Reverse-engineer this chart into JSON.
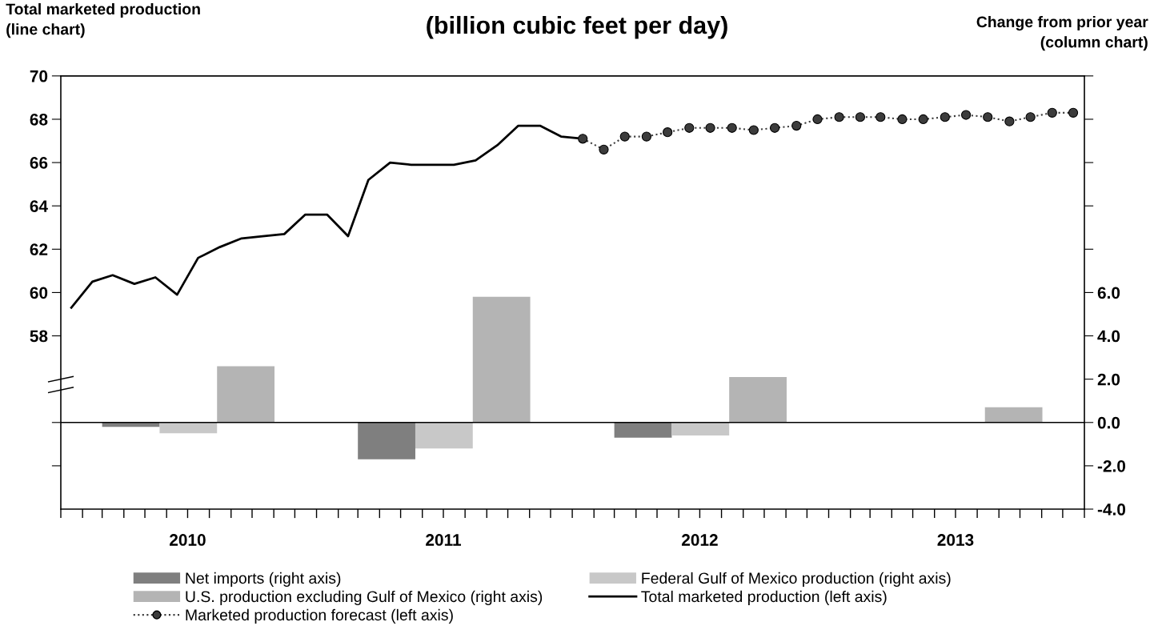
{
  "chart_data": {
    "type": "line",
    "title": "(billion cubic feet per day)",
    "ylabel": "Total marketed production\n(line chart)",
    "y2label": "Change from prior year\n(column chart)",
    "xlim": [
      "2010-01-01",
      "2014-01-01"
    ],
    "xticks": [
      {
        "value": "2010-01-01",
        "label": null
      },
      {
        "value": "2010-02-01",
        "label": null
      },
      {
        "value": "2010-03-01",
        "label": null
      },
      {
        "value": "2010-04-01",
        "label": null
      },
      {
        "value": "2010-05-01",
        "label": null
      },
      {
        "value": "2010-06-01",
        "label": null
      },
      {
        "value": "2010-07-01",
        "label": "2010"
      },
      {
        "value": "2010-08-01",
        "label": null
      },
      {
        "value": "2010-09-01",
        "label": null
      },
      {
        "value": "2010-10-01",
        "label": null
      },
      {
        "value": "2010-11-01",
        "label": null
      },
      {
        "value": "2010-12-01",
        "label": null
      },
      {
        "value": "2011-01-01",
        "label": null
      },
      {
        "value": "2011-02-01",
        "label": null
      },
      {
        "value": "2011-03-01",
        "label": null
      },
      {
        "value": "2011-04-01",
        "label": null
      },
      {
        "value": "2011-05-01",
        "label": null
      },
      {
        "value": "2011-06-01",
        "label": null
      },
      {
        "value": "2011-07-01",
        "label": "2011"
      },
      {
        "value": "2011-08-01",
        "label": null
      },
      {
        "value": "2011-09-01",
        "label": null
      },
      {
        "value": "2011-10-01",
        "label": null
      },
      {
        "value": "2011-11-01",
        "label": null
      },
      {
        "value": "2011-12-01",
        "label": null
      },
      {
        "value": "2012-01-01",
        "label": null
      },
      {
        "value": "2012-02-01",
        "label": null
      },
      {
        "value": "2012-03-01",
        "label": null
      },
      {
        "value": "2012-04-01",
        "label": null
      },
      {
        "value": "2012-05-01",
        "label": null
      },
      {
        "value": "2012-06-01",
        "label": null
      },
      {
        "value": "2012-07-01",
        "label": "2012"
      },
      {
        "value": "2012-08-01",
        "label": null
      },
      {
        "value": "2012-09-01",
        "label": null
      },
      {
        "value": "2012-10-01",
        "label": null
      },
      {
        "value": "2012-11-01",
        "label": null
      },
      {
        "value": "2012-12-01",
        "label": null
      },
      {
        "value": "2013-01-01",
        "label": null
      },
      {
        "value": "2013-02-01",
        "label": null
      },
      {
        "value": "2013-03-01",
        "label": null
      },
      {
        "value": "2013-04-01",
        "label": null
      },
      {
        "value": "2013-05-01",
        "label": null
      },
      {
        "value": "2013-06-01",
        "label": null
      },
      {
        "value": "2013-07-01",
        "label": "2013"
      },
      {
        "value": "2013-08-01",
        "label": null
      },
      {
        "value": "2013-09-01",
        "label": null
      },
      {
        "value": "2013-10-01",
        "label": null
      },
      {
        "value": "2013-11-01",
        "label": null
      },
      {
        "value": "2013-12-01",
        "label": null
      },
      {
        "value": "2014-01-01",
        "label": null
      }
    ],
    "ylim": [
      50,
      70
    ],
    "yticks": [
      {
        "value": 52,
        "label": null
      },
      {
        "value": 54,
        "label": null
      },
      58,
      60,
      62,
      64,
      66,
      68,
      70
    ],
    "y2lim": [
      -4,
      16
    ],
    "y2ticks": [
      {
        "value": -4,
        "label": "-4.0"
      },
      {
        "value": -2,
        "label": "-2.0"
      },
      {
        "value": 0,
        "label": "0.0"
      },
      {
        "value": 2,
        "label": "2.0"
      },
      {
        "value": 4,
        "label": "4.0"
      },
      {
        "value": 6,
        "label": "6.0"
      },
      {
        "value": 8,
        "label": null
      },
      {
        "value": 10,
        "label": null
      },
      {
        "value": 12,
        "label": null
      },
      {
        "value": 14,
        "label": null
      },
      {
        "value": 16,
        "label": null
      }
    ],
    "ref_lines": [
      {
        "axis": "y2",
        "value": 0,
        "color": "#000000"
      }
    ],
    "legend": "bottom",
    "series": [
      {
        "name": "Net imports (right axis)",
        "type": "bar",
        "axis": "y2",
        "color": "#7f7f7f",
        "x": [
          "2010-07-02",
          "2011-07-02",
          "2012-07-02",
          "2013-07-02"
        ],
        "values": [
          -0.2,
          -1.7,
          -0.7,
          0
        ]
      },
      {
        "name": "Federal Gulf of Mexico production (right axis)",
        "type": "bar",
        "axis": "y2",
        "color": "#c8c8c8",
        "x": [
          "2010-07-02",
          "2011-07-02",
          "2012-07-02",
          "2013-07-02"
        ],
        "values": [
          -0.5,
          -1.2,
          -0.6,
          0
        ]
      },
      {
        "name": "U.S. production excluding Gulf of Mexico (right axis)",
        "type": "bar",
        "axis": "y2",
        "color": "#b4b4b4",
        "x": [
          "2010-07-02",
          "2011-07-02",
          "2012-07-02",
          "2013-07-02"
        ],
        "values": [
          2.6,
          5.8,
          2.1,
          0.7
        ]
      },
      {
        "name": "Total marketed production (left axis)",
        "color": "#000000",
        "line_style": "solid",
        "marker": "none",
        "x": [
          "2010-01-16",
          "2010-02-15",
          "2010-03-16",
          "2010-04-16",
          "2010-05-16",
          "2010-06-16",
          "2010-07-16",
          "2010-08-16",
          "2010-09-16",
          "2010-10-16",
          "2010-11-16",
          "2010-12-16",
          "2011-01-16",
          "2011-02-15",
          "2011-03-16",
          "2011-04-16",
          "2011-05-16",
          "2011-06-16",
          "2011-07-16",
          "2011-08-16",
          "2011-09-16",
          "2011-10-16",
          "2011-11-16",
          "2011-12-16",
          "2012-01-16"
        ],
        "values": [
          59.3,
          60.5,
          60.8,
          60.4,
          60.7,
          59.9,
          61.6,
          62.1,
          62.5,
          62.6,
          62.7,
          63.6,
          63.6,
          62.6,
          65.2,
          66.0,
          65.9,
          65.9,
          65.9,
          66.1,
          66.8,
          67.7,
          67.7,
          67.2,
          67.1
        ]
      },
      {
        "name": "Marketed production forecast (left axis)",
        "color": "#3c3c3c",
        "line_style": "dotted",
        "marker": "circle",
        "x": [
          "2012-01-16",
          "2012-02-15",
          "2012-03-16",
          "2012-04-16",
          "2012-05-16",
          "2012-06-16",
          "2012-07-16",
          "2012-08-16",
          "2012-09-16",
          "2012-10-16",
          "2012-11-16",
          "2012-12-16",
          "2013-01-16",
          "2013-02-15",
          "2013-03-16",
          "2013-04-16",
          "2013-05-16",
          "2013-06-16",
          "2013-07-16",
          "2013-08-16",
          "2013-09-16",
          "2013-10-16",
          "2013-11-16",
          "2013-12-16"
        ],
        "values": [
          67.1,
          66.6,
          67.2,
          67.2,
          67.4,
          67.6,
          67.6,
          67.6,
          67.5,
          67.6,
          67.7,
          68.0,
          68.1,
          68.1,
          68.1,
          68.0,
          68.0,
          68.1,
          68.2,
          68.1,
          67.9,
          68.1,
          68.3,
          68.3
        ]
      }
    ]
  }
}
